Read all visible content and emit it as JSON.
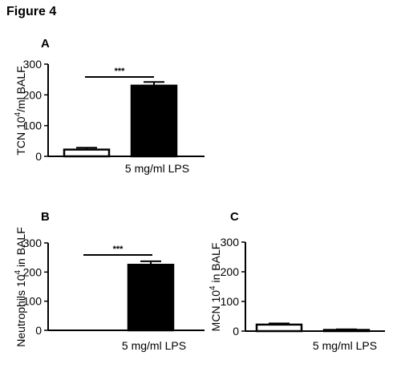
{
  "figure_title": "Figure 4",
  "chart_data": [
    {
      "panel": "A",
      "type": "bar",
      "ylabel": "TCN 10^4/ml BALF",
      "ylabel_parts": [
        "TCN 10",
        "4",
        "/ml BALF"
      ],
      "ylim": [
        0,
        300
      ],
      "yticks": [
        "0",
        "100",
        "200",
        "300"
      ],
      "categories": [
        "",
        "5 mg/ml LPS"
      ],
      "values": [
        22,
        230
      ],
      "errors": [
        6,
        12
      ],
      "fills": [
        "#ffffff",
        "#000000"
      ],
      "significance": "***",
      "grid": false
    },
    {
      "panel": "B",
      "type": "bar",
      "ylabel": "Neutrophils 10^4 in BALF",
      "ylabel_parts": [
        "Neutrophils 10",
        "4",
        " in BALF"
      ],
      "ylim": [
        0,
        300
      ],
      "yticks": [
        "0",
        "100",
        "200",
        "300"
      ],
      "categories": [
        "",
        "5 mg/ml LPS"
      ],
      "values": [
        0,
        225
      ],
      "errors": [
        0,
        12
      ],
      "fills": [
        "#ffffff",
        "#000000"
      ],
      "significance": "***",
      "grid": false
    },
    {
      "panel": "C",
      "type": "bar",
      "ylabel": "MCN 10^4 in BALF",
      "ylabel_parts": [
        "MCN 10",
        "4",
        " in BALF"
      ],
      "ylim": [
        0,
        300
      ],
      "yticks": [
        "0",
        "100",
        "200",
        "300"
      ],
      "categories": [
        "",
        "5 mg/ml LPS"
      ],
      "values": [
        22,
        4
      ],
      "errors": [
        4,
        2
      ],
      "fills": [
        "#ffffff",
        "#000000"
      ],
      "significance": "",
      "grid": false
    }
  ]
}
